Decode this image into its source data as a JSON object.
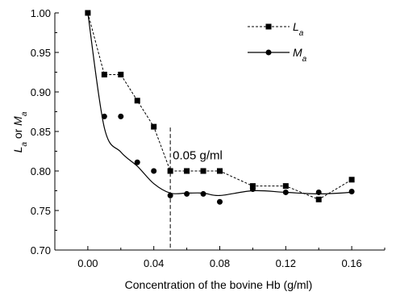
{
  "chart_data": {
    "type": "line",
    "title": "",
    "xlabel": "Concentration of the bovine Hb (g/ml)",
    "ylabel": {
      "p1": "L",
      "s1": "a",
      "mid": " or ",
      "p2": "M",
      "s2": "a"
    },
    "xlim": [
      -0.02,
      0.18
    ],
    "ylim": [
      0.7,
      1.0
    ],
    "xticks": [
      "0.00",
      "0.04",
      "0.08",
      "0.12",
      "0.16"
    ],
    "yticks": [
      "0.70",
      "0.75",
      "0.80",
      "0.85",
      "0.90",
      "0.95",
      "1.00"
    ],
    "legend_position": "top-right",
    "series": [
      {
        "name": {
          "main": "L",
          "sub": "a"
        },
        "marker": "square",
        "line": "dashed",
        "x": [
          0.0,
          0.01,
          0.02,
          0.03,
          0.04,
          0.05,
          0.06,
          0.07,
          0.08,
          0.1,
          0.12,
          0.14,
          0.16
        ],
        "y": [
          1.0,
          0.922,
          0.922,
          0.889,
          0.856,
          0.8,
          0.8,
          0.8,
          0.8,
          0.781,
          0.781,
          0.764,
          0.789
        ]
      },
      {
        "name": {
          "main": "M",
          "sub": "a"
        },
        "marker": "circle",
        "line": "smooth",
        "x": [
          0.0,
          0.01,
          0.02,
          0.03,
          0.04,
          0.05,
          0.06,
          0.07,
          0.08,
          0.1,
          0.12,
          0.14,
          0.16
        ],
        "y": [
          1.0,
          0.869,
          0.869,
          0.811,
          0.8,
          0.769,
          0.771,
          0.771,
          0.761,
          0.777,
          0.773,
          0.773,
          0.774
        ],
        "fit_y": [
          1.0,
          0.855,
          0.824,
          0.806,
          0.784,
          0.772,
          0.772,
          0.772,
          0.769,
          0.775,
          0.773,
          0.771,
          0.773
        ]
      }
    ],
    "annotations": [
      {
        "type": "vline",
        "x": 0.05,
        "style": "dashed",
        "y_top": 0.855,
        "text": "0.05 g/ml"
      }
    ]
  }
}
